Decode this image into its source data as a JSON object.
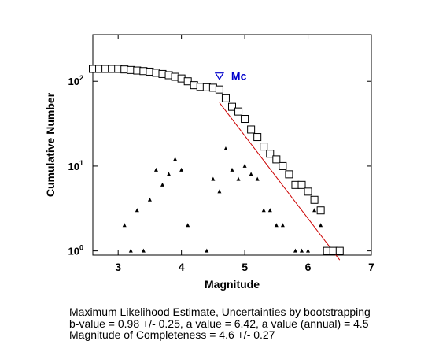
{
  "chart_data": {
    "type": "scatter",
    "xlabel": "Magnitude",
    "ylabel": "Cumulative Number",
    "xlim": [
      2.6,
      7.0
    ],
    "ylim_log10": [
      -0.05,
      2.55
    ],
    "y_scale": "log",
    "x_ticks": [
      3,
      4,
      5,
      6,
      7
    ],
    "x_tick_labels": [
      "3",
      "4",
      "5",
      "6",
      "7"
    ],
    "y_ticks": [
      1,
      10,
      100
    ],
    "y_tick_labels": [
      {
        "base": "10",
        "exp": "0"
      },
      {
        "base": "10",
        "exp": "1"
      },
      {
        "base": "10",
        "exp": "2"
      }
    ],
    "series": [
      {
        "marker": "open-square",
        "x": [
          2.6,
          2.7,
          2.8,
          2.9,
          3.0,
          3.1,
          3.2,
          3.3,
          3.4,
          3.5,
          3.6,
          3.7,
          3.8,
          3.9,
          4.0,
          4.1,
          4.2,
          4.3,
          4.4,
          4.5,
          4.6,
          4.7,
          4.8,
          4.9,
          5.0,
          5.1,
          5.2,
          5.3,
          5.4,
          5.5,
          5.6,
          5.7,
          5.8,
          5.9,
          6.0,
          6.1,
          6.2,
          6.3,
          6.4,
          6.5
        ],
        "y": [
          140,
          140,
          140,
          140,
          140,
          138,
          136,
          134,
          132,
          130,
          126,
          122,
          118,
          113,
          108,
          100,
          90,
          86,
          85,
          84,
          80,
          63,
          50,
          44,
          36,
          27,
          22,
          17,
          14,
          12,
          10,
          8,
          6,
          6,
          5,
          4,
          3,
          1,
          1,
          1
        ]
      },
      {
        "marker": "small-triangle",
        "x": [
          3.1,
          3.2,
          3.3,
          3.4,
          3.5,
          3.6,
          3.7,
          3.8,
          3.9,
          4.0,
          4.1,
          4.4,
          4.5,
          4.6,
          4.7,
          4.8,
          4.9,
          5.0,
          5.1,
          5.2,
          5.3,
          5.4,
          5.5,
          5.6,
          5.8,
          5.9,
          6.0,
          6.1,
          6.2
        ],
        "y": [
          2,
          1,
          3,
          1,
          4,
          9,
          6,
          8,
          12,
          9,
          2,
          1,
          7,
          5,
          16,
          9,
          7,
          10,
          8,
          7,
          3,
          3,
          2,
          2,
          1,
          1,
          1,
          3,
          2
        ]
      }
    ],
    "fit_line": {
      "x": [
        4.6,
        6.5
      ],
      "y": [
        56,
        0.78
      ],
      "color": "#cc0000"
    },
    "mc_marker": {
      "x": 4.6,
      "y": 115,
      "label": "Mc",
      "color": "#0000cc"
    }
  },
  "caption": {
    "line1": "Maximum Likelihood Estimate, Uncertainties by bootstrapping",
    "line2": "b-value = 0.98 +/- 0.25,  a value = 6.42,  a value (annual) = 4.5",
    "line3": "Magnitude of Completeness = 4.6 +/- 0.27"
  }
}
